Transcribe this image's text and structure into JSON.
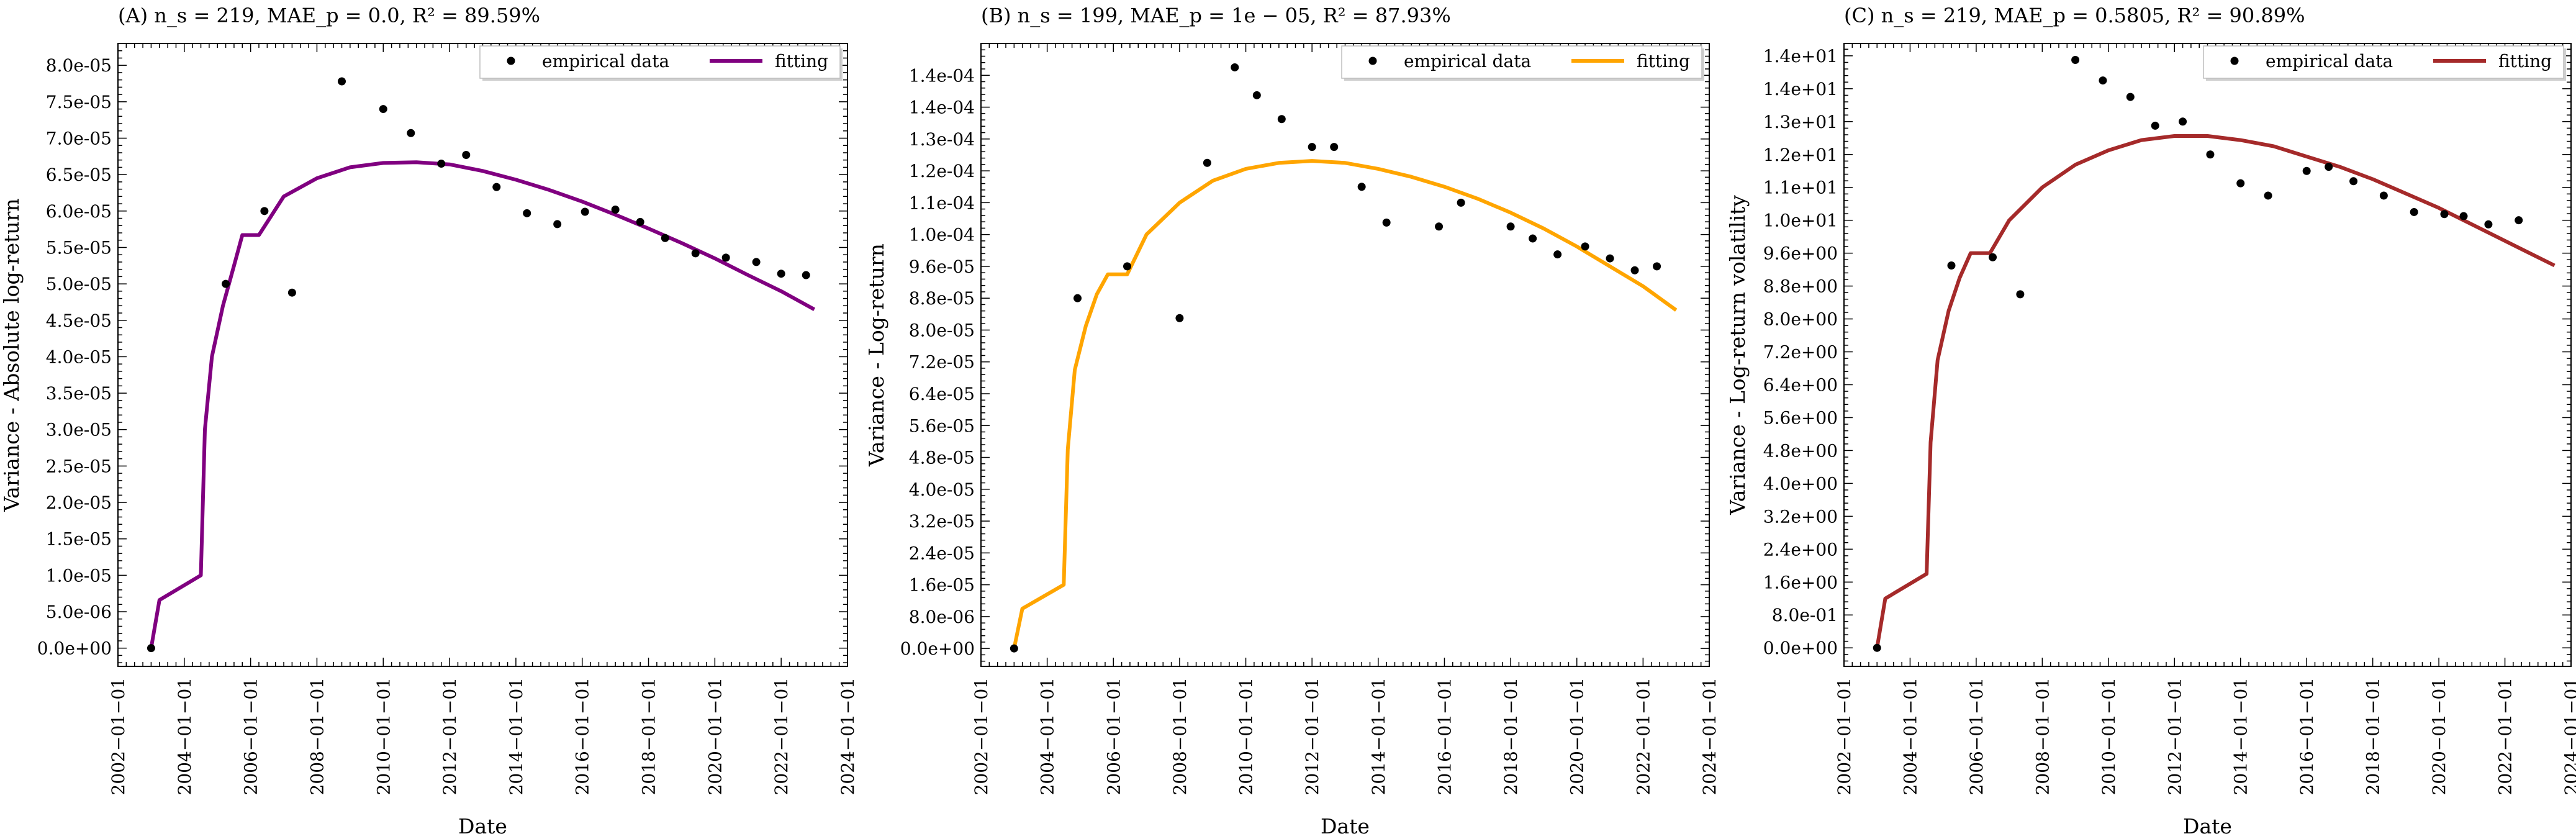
{
  "chart_data": [
    {
      "type": "line",
      "title": "(A) n_s = 219, MAE_p = 0.0, R² = 89.59%",
      "xlabel": "Date",
      "ylabel": "Variance - Absolute log-return",
      "xlim": [
        "2002-01-01",
        "2024-01-01"
      ],
      "ylim": [
        -2.5e-06,
        8.3e-05
      ],
      "x_ticks": [
        "2002−01−01",
        "2004−01−01",
        "2006−01−01",
        "2008−01−01",
        "2010−01−01",
        "2012−01−01",
        "2014−01−01",
        "2016−01−01",
        "2018−01−01",
        "2020−01−01",
        "2022−01−01",
        "2024−01−01"
      ],
      "y_tick_values": [
        0,
        5e-06,
        1e-05,
        1.5e-05,
        2e-05,
        2.5e-05,
        3e-05,
        3.5e-05,
        4e-05,
        4.5e-05,
        5e-05,
        5.5e-05,
        6e-05,
        6.5e-05,
        7e-05,
        7.5e-05,
        8e-05
      ],
      "y_tick_labels": [
        "0.0e+00",
        "5.0e-06",
        "1.0e-05",
        "1.5e-05",
        "2.0e-05",
        "2.5e-05",
        "3.0e-05",
        "3.5e-05",
        "4.0e-05",
        "4.5e-05",
        "5.0e-05",
        "5.5e-05",
        "6.0e-05",
        "6.5e-05",
        "7.0e-05",
        "7.5e-05",
        "8.0e-05"
      ],
      "legend": {
        "position": "top-right",
        "entries": [
          "empirical data",
          "fitting"
        ]
      },
      "series": [
        {
          "name": "empirical data",
          "kind": "scatter",
          "color": "#000000",
          "points": [
            [
              "2003-01-01",
              0.0
            ],
            [
              "2005-04-01",
              5e-05
            ],
            [
              "2006-06-01",
              6e-05
            ],
            [
              "2007-04-01",
              4.88e-05
            ],
            [
              "2008-10-01",
              7.78e-05
            ],
            [
              "2010-01-01",
              7.4e-05
            ],
            [
              "2010-11-01",
              7.07e-05
            ],
            [
              "2011-10-01",
              6.65e-05
            ],
            [
              "2012-07-01",
              6.77e-05
            ],
            [
              "2013-06-01",
              6.33e-05
            ],
            [
              "2014-05-01",
              5.97e-05
            ],
            [
              "2015-04-01",
              5.82e-05
            ],
            [
              "2016-02-01",
              5.99e-05
            ],
            [
              "2017-01-01",
              6.02e-05
            ],
            [
              "2017-10-01",
              5.85e-05
            ],
            [
              "2018-07-01",
              5.63e-05
            ],
            [
              "2019-06-01",
              5.42e-05
            ],
            [
              "2020-05-01",
              5.36e-05
            ],
            [
              "2021-04-01",
              5.3e-05
            ],
            [
              "2022-01-01",
              5.14e-05
            ],
            [
              "2022-10-01",
              5.12e-05
            ]
          ]
        },
        {
          "name": "fitting",
          "kind": "line",
          "color": "#800080",
          "points": [
            [
              "2003-01-01",
              0.0
            ],
            [
              "2003-04-01",
              6.6e-06
            ],
            [
              "2004-07-01",
              1e-05
            ],
            [
              "2004-08-15",
              3e-05
            ],
            [
              "2004-11-01",
              4e-05
            ],
            [
              "2005-03-01",
              4.7e-05
            ],
            [
              "2005-07-01",
              5.25e-05
            ],
            [
              "2005-10-01",
              5.67e-05
            ],
            [
              "2006-04-01",
              5.67e-05
            ],
            [
              "2007-01-01",
              6.2e-05
            ],
            [
              "2008-01-01",
              6.45e-05
            ],
            [
              "2009-01-01",
              6.6e-05
            ],
            [
              "2010-01-01",
              6.66e-05
            ],
            [
              "2011-01-01",
              6.67e-05
            ],
            [
              "2012-01-01",
              6.64e-05
            ],
            [
              "2013-01-01",
              6.55e-05
            ],
            [
              "2014-01-01",
              6.43e-05
            ],
            [
              "2015-01-01",
              6.29e-05
            ],
            [
              "2016-01-01",
              6.13e-05
            ],
            [
              "2017-01-01",
              5.95e-05
            ],
            [
              "2018-01-01",
              5.76e-05
            ],
            [
              "2019-01-01",
              5.56e-05
            ],
            [
              "2020-01-01",
              5.35e-05
            ],
            [
              "2021-01-01",
              5.12e-05
            ],
            [
              "2022-01-01",
              4.9e-05
            ],
            [
              "2023-01-01",
              4.65e-05
            ]
          ]
        }
      ]
    },
    {
      "type": "line",
      "title": "(B) n_s = 199, MAE_p = 1e − 05, R² = 87.93%",
      "xlabel": "Date",
      "ylabel": "Variance - Log-return",
      "xlim": [
        "2002-01-01",
        "2024-01-01"
      ],
      "ylim": [
        -4.5e-06,
        0.000152
      ],
      "x_ticks": [
        "2002−01−01",
        "2004−01−01",
        "2006−01−01",
        "2008−01−01",
        "2010−01−01",
        "2012−01−01",
        "2014−01−01",
        "2016−01−01",
        "2018−01−01",
        "2020−01−01",
        "2022−01−01",
        "2024−01−01"
      ],
      "y_tick_values": [
        0,
        8e-06,
        1.6e-05,
        2.4e-05,
        3.2e-05,
        4e-05,
        4.8e-05,
        5.6e-05,
        6.4e-05,
        7.2e-05,
        8e-05,
        8.8e-05,
        9.6e-05,
        0.000104,
        0.000112,
        0.00012,
        0.000128,
        0.000136,
        0.000144
      ],
      "y_tick_labels": [
        "0.0e+00",
        "8.0e-06",
        "1.6e-05",
        "2.4e-05",
        "3.2e-05",
        "4.0e-05",
        "4.8e-05",
        "5.6e-05",
        "6.4e-05",
        "7.2e-05",
        "8.0e-05",
        "8.8e-05",
        "9.6e-05",
        "1.0e-04",
        "1.1e-04",
        "1.2e-04",
        "1.3e-04",
        "1.4e-04",
        "1.4e-04"
      ],
      "legend": {
        "position": "top-right",
        "entries": [
          "empirical data",
          "fitting"
        ]
      },
      "series": [
        {
          "name": "empirical data",
          "kind": "scatter",
          "color": "#000000",
          "points": [
            [
              "2003-01-01",
              0.0
            ],
            [
              "2004-12-01",
              8.8e-05
            ],
            [
              "2006-06-01",
              9.6e-05
            ],
            [
              "2008-01-01",
              8.3e-05
            ],
            [
              "2008-11-01",
              0.000122
            ],
            [
              "2009-09-01",
              0.000146
            ],
            [
              "2010-05-01",
              0.000139
            ],
            [
              "2011-02-01",
              0.000133
            ],
            [
              "2012-01-01",
              0.000126
            ],
            [
              "2012-09-01",
              0.000126
            ],
            [
              "2013-07-01",
              0.000116
            ],
            [
              "2014-04-01",
              0.000107
            ],
            [
              "2015-11-01",
              0.000106
            ],
            [
              "2016-07-01",
              0.000112
            ],
            [
              "2018-01-01",
              0.000106
            ],
            [
              "2018-09-01",
              0.000103
            ],
            [
              "2019-06-01",
              9.9e-05
            ],
            [
              "2020-04-01",
              0.000101
            ],
            [
              "2021-01-01",
              9.8e-05
            ],
            [
              "2021-10-01",
              9.5e-05
            ],
            [
              "2022-06-01",
              9.6e-05
            ]
          ]
        },
        {
          "name": "fitting",
          "kind": "line",
          "color": "#FFA500",
          "points": [
            [
              "2003-01-01",
              0.0
            ],
            [
              "2003-04-01",
              1e-05
            ],
            [
              "2004-07-01",
              1.6e-05
            ],
            [
              "2004-08-15",
              5e-05
            ],
            [
              "2004-11-01",
              7e-05
            ],
            [
              "2005-03-01",
              8.1e-05
            ],
            [
              "2005-07-01",
              8.9e-05
            ],
            [
              "2005-11-01",
              9.4e-05
            ],
            [
              "2006-06-01",
              9.4e-05
            ],
            [
              "2007-01-01",
              0.000104
            ],
            [
              "2008-01-01",
              0.000112
            ],
            [
              "2009-01-01",
              0.0001175
            ],
            [
              "2010-01-01",
              0.0001205
            ],
            [
              "2011-01-01",
              0.000122
            ],
            [
              "2012-01-01",
              0.0001225
            ],
            [
              "2013-01-01",
              0.000122
            ],
            [
              "2014-01-01",
              0.0001205
            ],
            [
              "2015-01-01",
              0.0001185
            ],
            [
              "2016-01-01",
              0.000116
            ],
            [
              "2017-01-01",
              0.000113
            ],
            [
              "2018-01-01",
              0.0001095
            ],
            [
              "2019-01-01",
              0.0001055
            ],
            [
              "2020-01-01",
              0.000101
            ],
            [
              "2021-01-01",
              9.6e-05
            ],
            [
              "2022-01-01",
              9.1e-05
            ],
            [
              "2023-01-01",
              8.5e-05
            ]
          ]
        }
      ]
    },
    {
      "type": "line",
      "title": "(C) n_s = 219, MAE_p = 0.5805, R² = 90.89%",
      "xlabel": "Date",
      "ylabel": "Variance - Log-return volatility",
      "xlim": [
        "2002-01-01",
        "2024-01-01"
      ],
      "ylim": [
        -0.45,
        14.7
      ],
      "x_ticks": [
        "2002−01−01",
        "2004−01−01",
        "2006−01−01",
        "2008−01−01",
        "2010−01−01",
        "2012−01−01",
        "2014−01−01",
        "2016−01−01",
        "2018−01−01",
        "2020−01−01",
        "2022−01−01",
        "2024−01−01"
      ],
      "y_tick_values": [
        0,
        0.8,
        1.6,
        2.4,
        3.2,
        4.0,
        4.8,
        5.6,
        6.4,
        7.2,
        8.0,
        8.8,
        9.6,
        10.4,
        11.2,
        12.0,
        12.8,
        13.6,
        14.4
      ],
      "y_tick_labels": [
        "0.0e+00",
        "8.0e-01",
        "1.6e+00",
        "2.4e+00",
        "3.2e+00",
        "4.0e+00",
        "4.8e+00",
        "5.6e+00",
        "6.4e+00",
        "7.2e+00",
        "8.0e+00",
        "8.8e+00",
        "9.6e+00",
        "1.0e+01",
        "1.1e+01",
        "1.2e+01",
        "1.3e+01",
        "1.4e+01",
        "1.4e+01"
      ],
      "legend": {
        "position": "top-right",
        "entries": [
          "empirical data",
          "fitting"
        ]
      },
      "series": [
        {
          "name": "empirical data",
          "kind": "scatter",
          "color": "#000000",
          "points": [
            [
              "2003-01-01",
              0.0
            ],
            [
              "2005-04-01",
              9.3
            ],
            [
              "2006-07-01",
              9.5
            ],
            [
              "2007-05-01",
              8.6
            ],
            [
              "2009-01-01",
              14.3
            ],
            [
              "2009-11-01",
              13.8
            ],
            [
              "2010-09-01",
              13.4
            ],
            [
              "2011-06-01",
              12.7
            ],
            [
              "2012-04-01",
              12.8
            ],
            [
              "2013-02-01",
              12.0
            ],
            [
              "2014-01-01",
              11.3
            ],
            [
              "2014-11-01",
              11.0
            ],
            [
              "2016-01-01",
              11.6
            ],
            [
              "2016-09-01",
              11.7
            ],
            [
              "2017-06-01",
              11.35
            ],
            [
              "2018-05-01",
              11.0
            ],
            [
              "2019-04-01",
              10.6
            ],
            [
              "2020-03-01",
              10.55
            ],
            [
              "2020-10-01",
              10.5
            ],
            [
              "2021-07-01",
              10.3
            ],
            [
              "2022-06-01",
              10.4
            ]
          ]
        },
        {
          "name": "fitting",
          "kind": "line",
          "color": "#A52A2A",
          "points": [
            [
              "2003-01-01",
              0.0
            ],
            [
              "2003-04-01",
              1.2
            ],
            [
              "2004-07-01",
              1.8
            ],
            [
              "2004-08-15",
              5.0
            ],
            [
              "2004-11-01",
              7.0
            ],
            [
              "2005-03-01",
              8.2
            ],
            [
              "2005-07-01",
              9.0
            ],
            [
              "2005-11-01",
              9.6
            ],
            [
              "2006-06-01",
              9.6
            ],
            [
              "2007-01-01",
              10.4
            ],
            [
              "2008-01-01",
              11.2
            ],
            [
              "2009-01-01",
              11.75
            ],
            [
              "2010-01-01",
              12.1
            ],
            [
              "2011-01-01",
              12.35
            ],
            [
              "2012-01-01",
              12.45
            ],
            [
              "2013-01-01",
              12.45
            ],
            [
              "2014-01-01",
              12.35
            ],
            [
              "2015-01-01",
              12.2
            ],
            [
              "2016-01-01",
              11.95
            ],
            [
              "2017-01-01",
              11.7
            ],
            [
              "2018-01-01",
              11.4
            ],
            [
              "2019-01-01",
              11.05
            ],
            [
              "2020-01-01",
              10.7
            ],
            [
              "2021-01-01",
              10.3
            ],
            [
              "2022-01-01",
              9.9
            ],
            [
              "2023-01-01",
              9.5
            ],
            [
              "2023-07-01",
              9.3
            ]
          ]
        }
      ]
    }
  ]
}
